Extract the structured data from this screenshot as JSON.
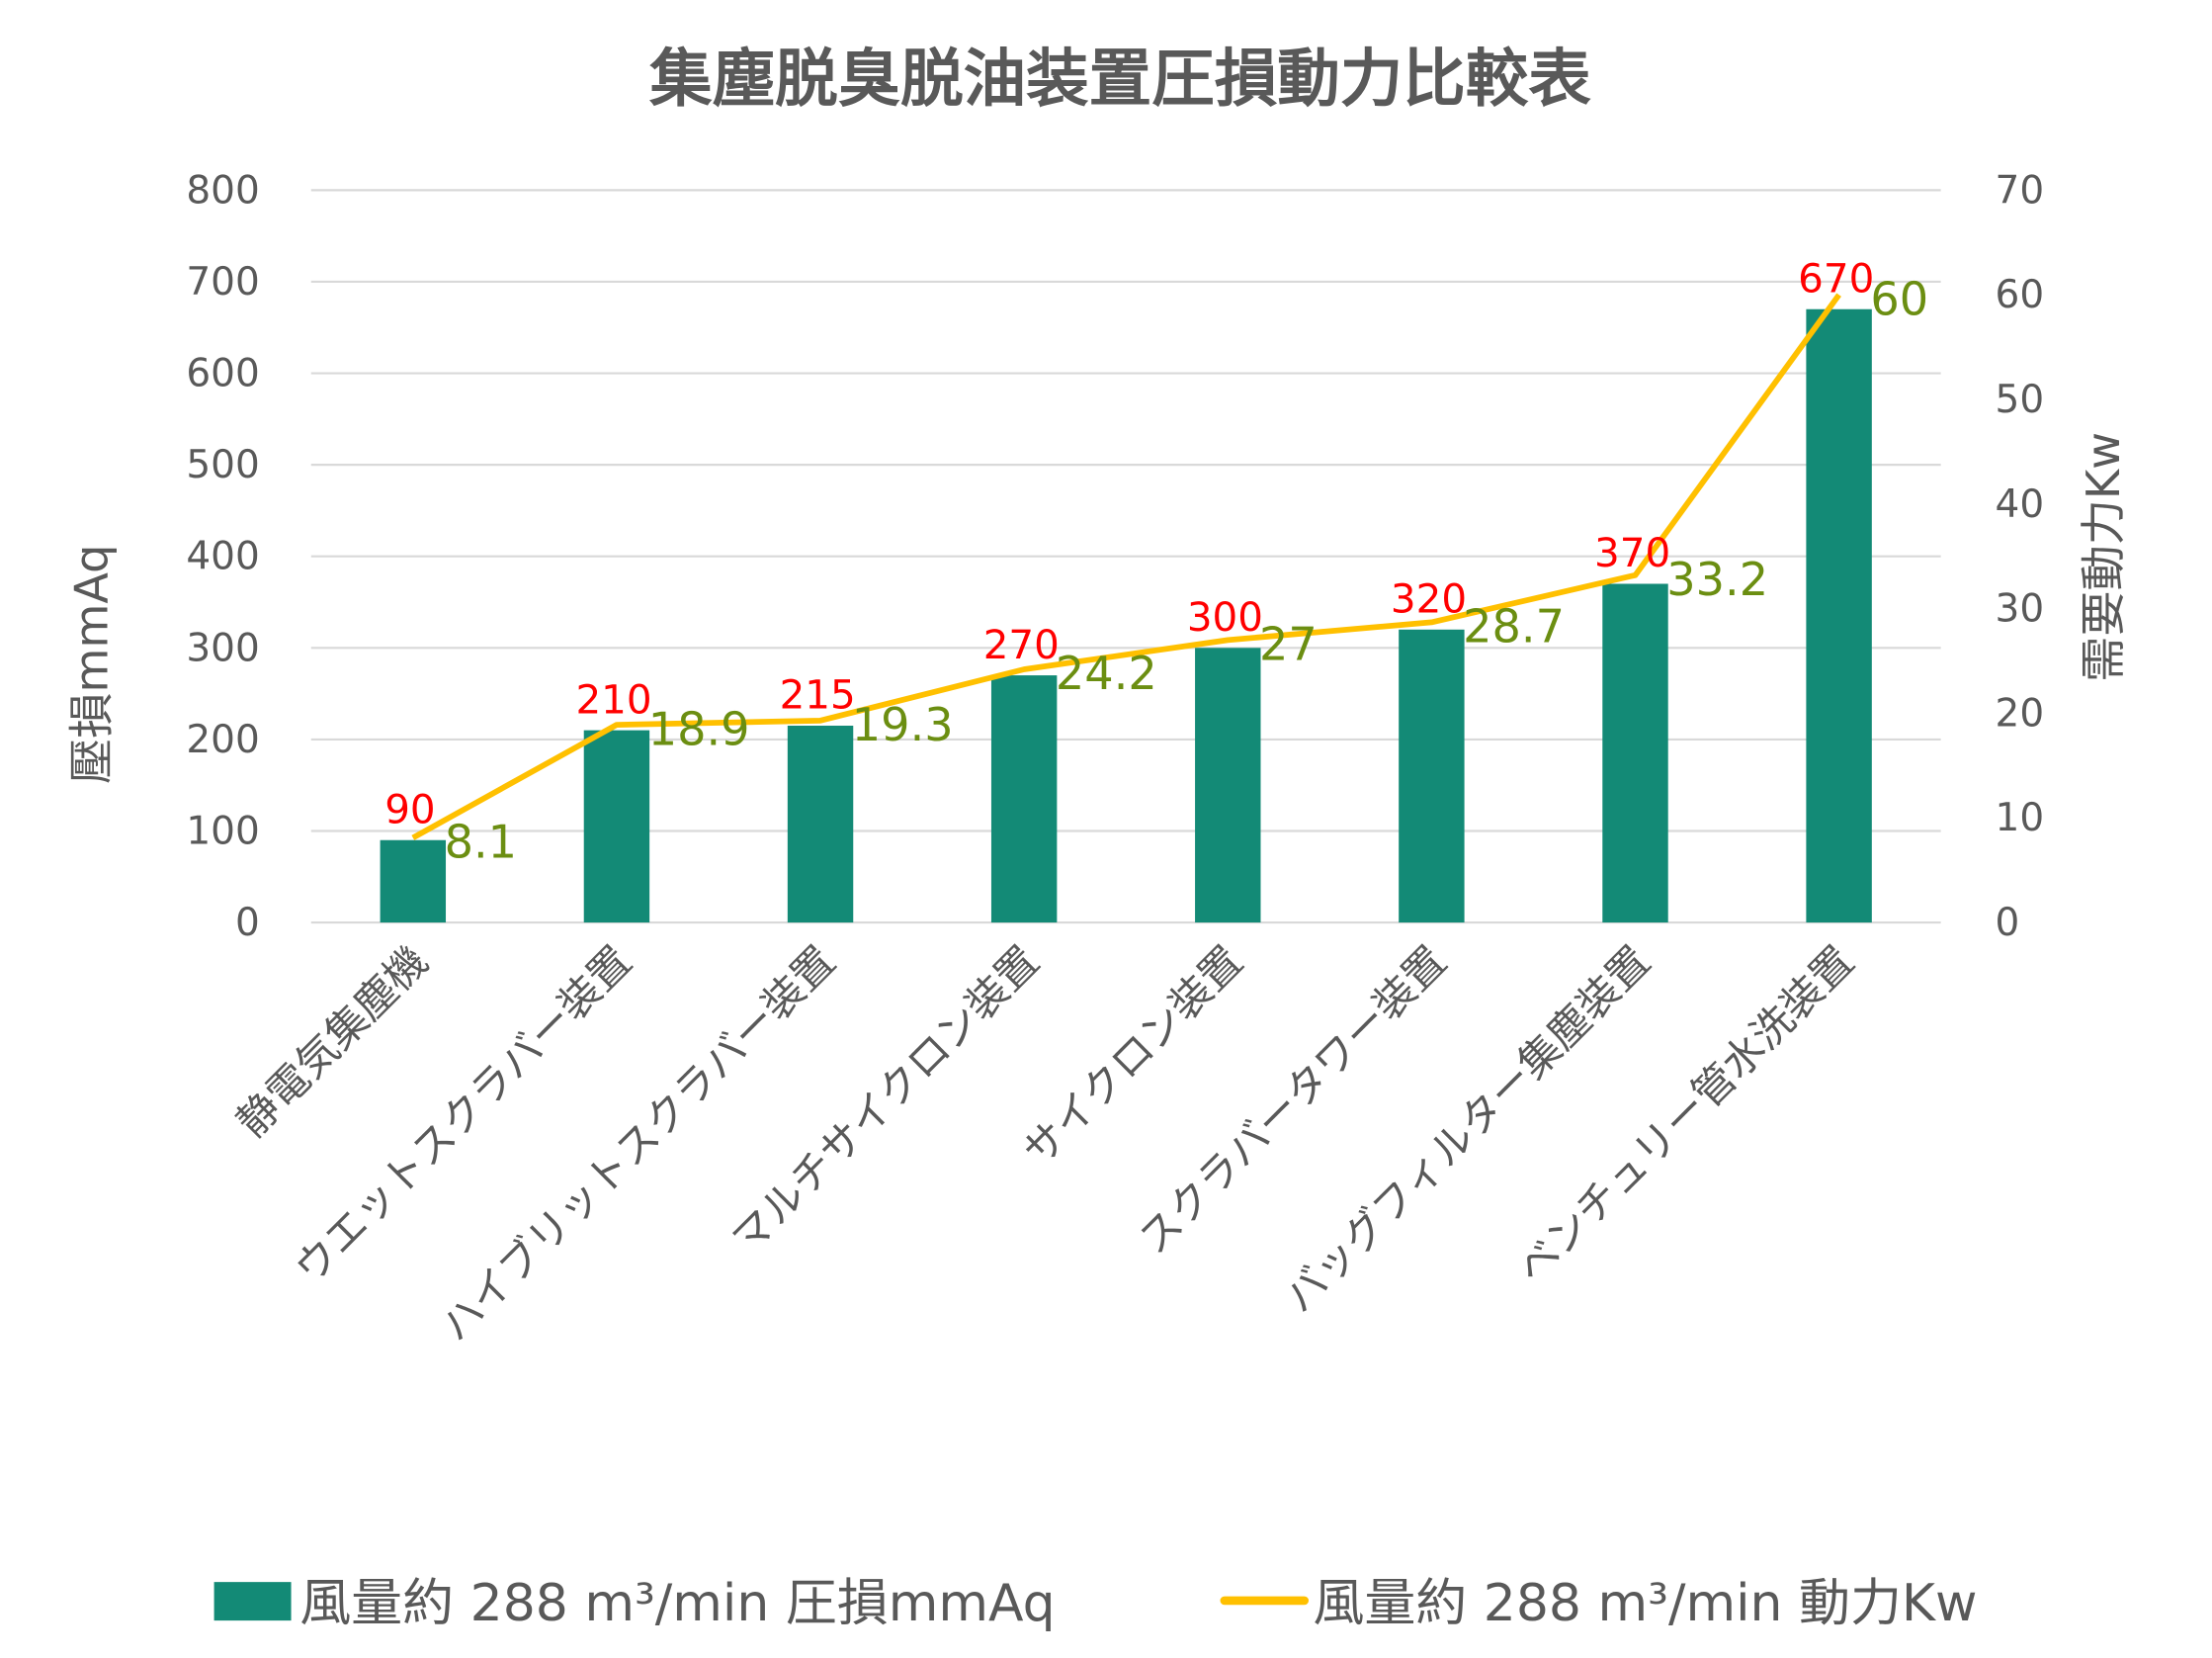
{
  "chart_data": {
    "type": "bar+line",
    "title": "集塵脱臭脱油装置圧損動力比較表",
    "categories": [
      "静電気集塵機",
      "ウエットスクラバー装置",
      "ハイブリットスクラバー装置",
      "マルチサイクロン装置",
      "サイクロン装置",
      "スクラバータワー装置",
      "バッグフィルター集塵装置",
      "ベンチュリー管水洗装置"
    ],
    "ylabel": "壓損mmAq",
    "y2label": "需要動力Kw",
    "ylim": [
      0,
      800
    ],
    "y2lim": [
      0,
      70
    ],
    "yticks": [
      "0",
      "100",
      "200",
      "300",
      "400",
      "500",
      "600",
      "700",
      "800"
    ],
    "y2ticks": [
      "0",
      "10",
      "20",
      "30",
      "40",
      "50",
      "60",
      "70"
    ],
    "grid": true,
    "legend": "bottom",
    "series": [
      {
        "name": "風量約 288 m³/min 圧損mmAq",
        "type": "bar",
        "axis": "left",
        "color": "#138a76",
        "label_color": "#ff0000",
        "values": [
          90,
          210,
          215,
          270,
          300,
          320,
          370,
          670
        ],
        "labels": [
          "90",
          "210",
          "215",
          "270",
          "300",
          "320",
          "370",
          "670"
        ]
      },
      {
        "name": "風量約 288 m³/min 動力Kw",
        "type": "line",
        "axis": "right",
        "color": "#ffc000",
        "label_color": "#6b8e11",
        "values": [
          8.1,
          18.9,
          19.3,
          24.2,
          27,
          28.7,
          33.2,
          60
        ],
        "labels": [
          "8.1",
          "18.9",
          "19.3",
          "24.2",
          "27",
          "28.7",
          "33.2",
          "60"
        ]
      }
    ]
  }
}
